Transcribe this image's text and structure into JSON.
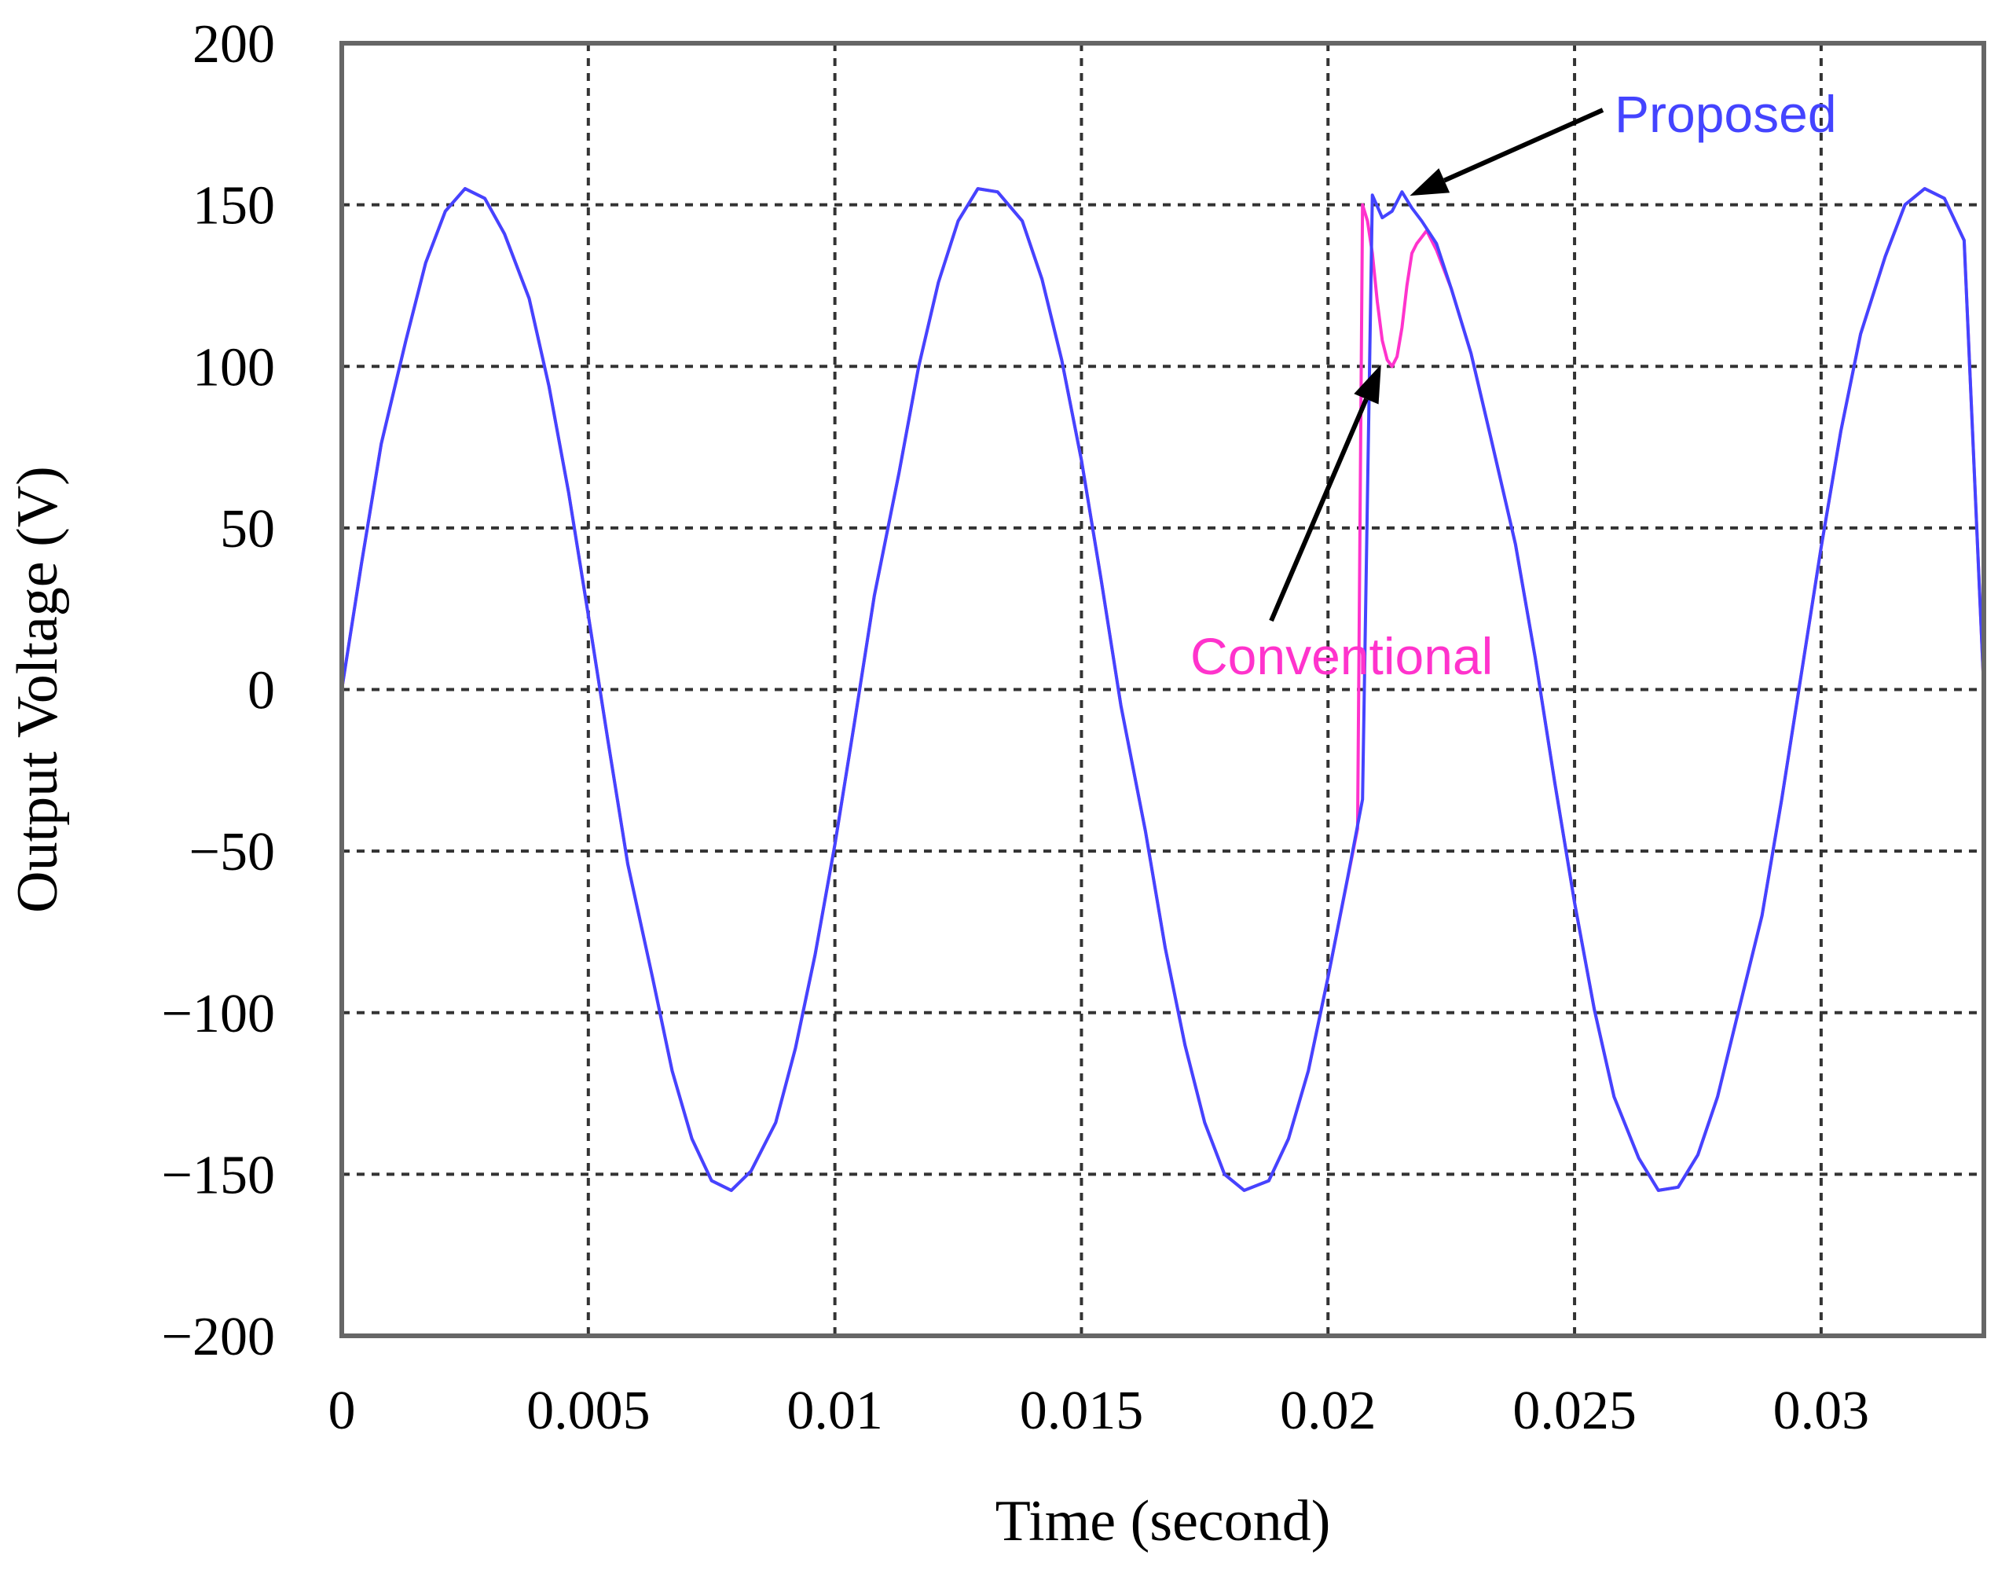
{
  "chart_data": {
    "type": "line",
    "title": "",
    "xlabel": "Time (second)",
    "ylabel": "Output Voltage (V)",
    "xlim": [
      0,
      0.0333
    ],
    "ylim": [
      -200,
      200
    ],
    "x_ticks": [
      0,
      0.005,
      0.01,
      0.015,
      0.02,
      0.025,
      0.03
    ],
    "x_tick_labels": [
      "0",
      "0.005",
      "0.01",
      "0.015",
      "0.02",
      "0.025",
      "0.03"
    ],
    "y_ticks": [
      200,
      150,
      100,
      50,
      0,
      -50,
      -100,
      -150,
      -200
    ],
    "y_tick_labels": [
      "200",
      "150",
      "100",
      "50",
      "0",
      "−50",
      "−100",
      "−150",
      "−200"
    ],
    "grid": true,
    "series": [
      {
        "name": "Conventional",
        "color": "#ff33cc",
        "x": [
          0,
          0.0004,
          0.0008,
          0.0013,
          0.0017,
          0.0021,
          0.0025,
          0.0029,
          0.0033,
          0.0038,
          0.0042,
          0.0046,
          0.005,
          0.0054,
          0.0058,
          0.0063,
          0.0067,
          0.0071,
          0.0075,
          0.0079,
          0.0083,
          0.0088,
          0.0092,
          0.0096,
          0.01,
          0.0104,
          0.0108,
          0.0113,
          0.0117,
          0.0121,
          0.0125,
          0.0129,
          0.0133,
          0.0138,
          0.0142,
          0.0146,
          0.015,
          0.0154,
          0.0158,
          0.0163,
          0.0167,
          0.0171,
          0.0175,
          0.0179,
          0.0183,
          0.0188,
          0.0192,
          0.0196,
          0.02,
          0.0203,
          0.0206,
          0.0207,
          0.0208,
          0.0209,
          0.021,
          0.0211,
          0.0212,
          0.0213,
          0.0214,
          0.0215,
          0.0216,
          0.0217,
          0.0218,
          0.0219,
          0.022,
          0.0222,
          0.0225,
          0.0229,
          0.0233,
          0.0238,
          0.0242,
          0.0246,
          0.025,
          0.0254,
          0.0258,
          0.0263,
          0.0267,
          0.0271,
          0.0275,
          0.0279,
          0.0283,
          0.0288,
          0.0292,
          0.0296,
          0.03,
          0.0304,
          0.0308,
          0.0313,
          0.0317,
          0.0321,
          0.0325,
          0.0329,
          0.0333
        ],
        "values": [
          0,
          39,
          76,
          108,
          132,
          148,
          155,
          152,
          141,
          121,
          94,
          61,
          23,
          -16,
          -54,
          -89,
          -118,
          -139,
          -152,
          -155,
          -149,
          -134,
          -111,
          -82,
          -48,
          -10,
          29,
          67,
          100,
          126,
          145,
          155,
          154,
          145,
          127,
          102,
          71,
          34,
          -5,
          -44,
          -80,
          -110,
          -134,
          -150,
          -155,
          -152,
          -139,
          -118,
          -89,
          -66,
          -43,
          150,
          145,
          135,
          120,
          108,
          102,
          100,
          103,
          112,
          125,
          135,
          138,
          140,
          142,
          136,
          124,
          104,
          78,
          45,
          10,
          -29,
          -66,
          -99,
          -126,
          -145,
          -155,
          -154,
          -144,
          -126,
          -101,
          -70,
          -34,
          5,
          44,
          80,
          110,
          134,
          150,
          155,
          152,
          139,
          0
        ]
      },
      {
        "name": "Proposed",
        "color": "#4444ff",
        "x": [
          0,
          0.0004,
          0.0008,
          0.0013,
          0.0017,
          0.0021,
          0.0025,
          0.0029,
          0.0033,
          0.0038,
          0.0042,
          0.0046,
          0.005,
          0.0054,
          0.0058,
          0.0063,
          0.0067,
          0.0071,
          0.0075,
          0.0079,
          0.0083,
          0.0088,
          0.0092,
          0.0096,
          0.01,
          0.0104,
          0.0108,
          0.0113,
          0.0117,
          0.0121,
          0.0125,
          0.0129,
          0.0133,
          0.0138,
          0.0142,
          0.0146,
          0.015,
          0.0154,
          0.0158,
          0.0163,
          0.0167,
          0.0171,
          0.0175,
          0.0179,
          0.0183,
          0.0188,
          0.0192,
          0.0196,
          0.02,
          0.0204,
          0.0207,
          0.0209,
          0.0211,
          0.0213,
          0.0215,
          0.0217,
          0.0219,
          0.0222,
          0.0225,
          0.0229,
          0.0233,
          0.0238,
          0.0242,
          0.0246,
          0.025,
          0.0254,
          0.0258,
          0.0263,
          0.0267,
          0.0271,
          0.0275,
          0.0279,
          0.0283,
          0.0288,
          0.0292,
          0.0296,
          0.03,
          0.0304,
          0.0308,
          0.0313,
          0.0317,
          0.0321,
          0.0325,
          0.0329,
          0.0333
        ],
        "values": [
          0,
          39,
          76,
          108,
          132,
          148,
          155,
          152,
          141,
          121,
          94,
          61,
          23,
          -16,
          -54,
          -89,
          -118,
          -139,
          -152,
          -155,
          -149,
          -134,
          -111,
          -82,
          -48,
          -10,
          29,
          67,
          100,
          126,
          145,
          155,
          154,
          145,
          127,
          102,
          71,
          34,
          -5,
          -44,
          -80,
          -110,
          -134,
          -150,
          -155,
          -152,
          -139,
          -118,
          -89,
          -58,
          -34,
          153,
          146,
          148,
          154,
          149,
          145,
          138,
          124,
          104,
          78,
          45,
          10,
          -29,
          -66,
          -99,
          -126,
          -145,
          -155,
          -154,
          -144,
          -126,
          -101,
          -70,
          -34,
          5,
          44,
          80,
          110,
          134,
          150,
          155,
          152,
          139,
          0
        ]
      }
    ],
    "annotations": [
      {
        "text": "Proposed",
        "color": "#4444ff",
        "points_to": {
          "x": 0.0215,
          "y": 154
        }
      },
      {
        "text": "Conventional",
        "color": "#ff33cc",
        "points_to": {
          "x": 0.0213,
          "y": 105
        }
      }
    ]
  }
}
